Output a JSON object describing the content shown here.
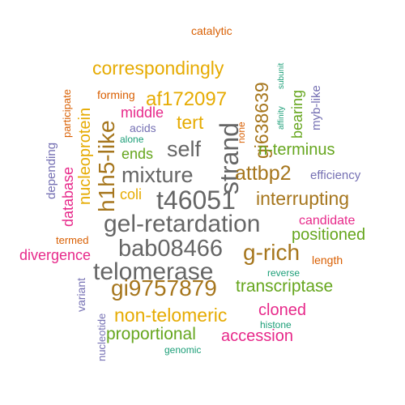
{
  "palette": {
    "green": "#1B9E77",
    "orange": "#D95F02",
    "purple": "#7570B3",
    "magenta": "#E7298A",
    "lime": "#66A61E",
    "gold": "#E6AB02",
    "brown": "#A6761D",
    "gray": "#666666"
  },
  "words": [
    {
      "text": "catalytic",
      "color": "orange"
    },
    {
      "text": "subunit",
      "color": "green"
    },
    {
      "text": "affinity",
      "color": "green"
    },
    {
      "text": "correspondingly",
      "color": "gold"
    },
    {
      "text": "gi638639",
      "color": "brown"
    },
    {
      "text": "bearing",
      "color": "lime"
    },
    {
      "text": "myb-like",
      "color": "purple"
    },
    {
      "text": "forming",
      "color": "orange"
    },
    {
      "text": "participate",
      "color": "orange"
    },
    {
      "text": "af172097",
      "color": "gold"
    },
    {
      "text": "middle",
      "color": "magenta"
    },
    {
      "text": "nucleoprotein",
      "color": "gold"
    },
    {
      "text": "tert",
      "color": "gold"
    },
    {
      "text": "acids",
      "color": "purple"
    },
    {
      "text": "none",
      "color": "orange"
    },
    {
      "text": "alone",
      "color": "green"
    },
    {
      "text": "database",
      "color": "magenta"
    },
    {
      "text": "depending",
      "color": "purple"
    },
    {
      "text": "self",
      "color": "gray"
    },
    {
      "text": "ends",
      "color": "lime"
    },
    {
      "text": "n-terminus",
      "color": "lime"
    },
    {
      "text": "h1h5-like",
      "color": "brown"
    },
    {
      "text": "strand",
      "color": "gray"
    },
    {
      "text": "mixture",
      "color": "gray"
    },
    {
      "text": "attbp2",
      "color": "brown"
    },
    {
      "text": "efficiency",
      "color": "purple"
    },
    {
      "text": "coli",
      "color": "gold"
    },
    {
      "text": "t46051",
      "color": "gray"
    },
    {
      "text": "interrupting",
      "color": "brown"
    },
    {
      "text": "candidate",
      "color": "magenta"
    },
    {
      "text": "gel-retardation",
      "color": "gray"
    },
    {
      "text": "positioned",
      "color": "lime"
    },
    {
      "text": "termed",
      "color": "orange"
    },
    {
      "text": "bab08466",
      "color": "gray"
    },
    {
      "text": "g-rich",
      "color": "brown"
    },
    {
      "text": "divergence",
      "color": "magenta"
    },
    {
      "text": "length",
      "color": "orange"
    },
    {
      "text": "reverse",
      "color": "green"
    },
    {
      "text": "telomerase",
      "color": "gray"
    },
    {
      "text": "transcriptase",
      "color": "lime"
    },
    {
      "text": "variant",
      "color": "purple"
    },
    {
      "text": "gi9757879",
      "color": "brown"
    },
    {
      "text": "cloned",
      "color": "magenta"
    },
    {
      "text": "nucleotide",
      "color": "purple"
    },
    {
      "text": "non-telomeric",
      "color": "gold"
    },
    {
      "text": "histone",
      "color": "green"
    },
    {
      "text": "proportional",
      "color": "lime"
    },
    {
      "text": "accession",
      "color": "magenta"
    },
    {
      "text": "genomic",
      "color": "green"
    }
  ]
}
